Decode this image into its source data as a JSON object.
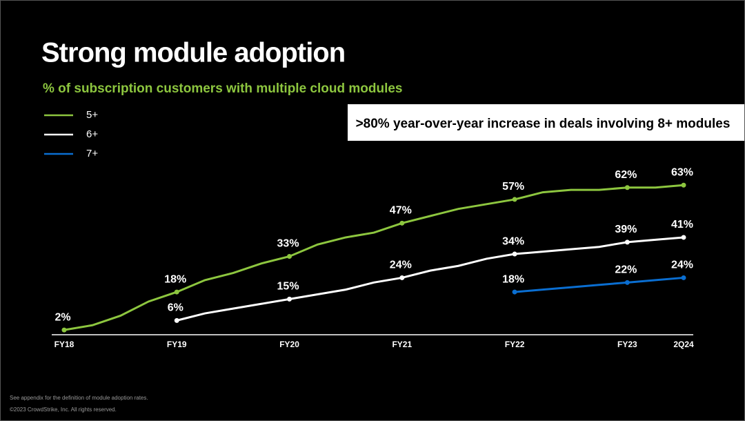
{
  "chart_data": {
    "type": "line",
    "title": "Strong module adoption",
    "subtitle": "% of subscription customers with multiple cloud modules",
    "annotation": ">80% year-over-year increase in deals involving 8+ modules",
    "categories": [
      "FY18",
      null,
      null,
      null,
      "FY19",
      null,
      null,
      null,
      "FY20",
      null,
      null,
      null,
      "FY21",
      null,
      null,
      null,
      "FY22",
      null,
      null,
      null,
      "FY23",
      null,
      "2Q24"
    ],
    "series": [
      {
        "name": "5+",
        "color": "#8dc63f",
        "values": [
          2,
          4,
          8,
          14,
          18,
          23,
          26,
          30,
          33,
          38,
          41,
          43,
          47,
          50,
          53,
          55,
          57,
          60,
          61,
          61,
          62,
          62,
          63
        ],
        "value_labels": [
          "2%",
          null,
          null,
          null,
          "18%",
          null,
          null,
          null,
          "33%",
          null,
          null,
          null,
          "47%",
          null,
          null,
          null,
          "57%",
          null,
          null,
          null,
          "62%",
          null,
          "63%"
        ]
      },
      {
        "name": "6+",
        "color": "#ffffff",
        "values": [
          null,
          null,
          null,
          null,
          6,
          9,
          11,
          13,
          15,
          17,
          19,
          22,
          24,
          27,
          29,
          32,
          34,
          35,
          36,
          37,
          39,
          40,
          41
        ],
        "value_labels": [
          null,
          null,
          null,
          null,
          "6%",
          null,
          null,
          null,
          "15%",
          null,
          null,
          null,
          "24%",
          null,
          null,
          null,
          "34%",
          null,
          null,
          null,
          "39%",
          null,
          "41%"
        ]
      },
      {
        "name": "7+",
        "color": "#0a6ed1",
        "values": [
          null,
          null,
          null,
          null,
          null,
          null,
          null,
          null,
          null,
          null,
          null,
          null,
          null,
          null,
          null,
          null,
          18,
          19,
          20,
          21,
          22,
          23,
          24
        ],
        "value_labels": [
          null,
          null,
          null,
          null,
          null,
          null,
          null,
          null,
          null,
          null,
          null,
          null,
          null,
          null,
          null,
          null,
          "18%",
          null,
          null,
          null,
          "22%",
          null,
          "24%"
        ]
      }
    ],
    "ylim": [
      0,
      100
    ],
    "legend": "top-left"
  },
  "footnotes": [
    "See appendix for the definition of module adoption rates.",
    "©2023 CrowdStrike, Inc. All rights reserved."
  ]
}
